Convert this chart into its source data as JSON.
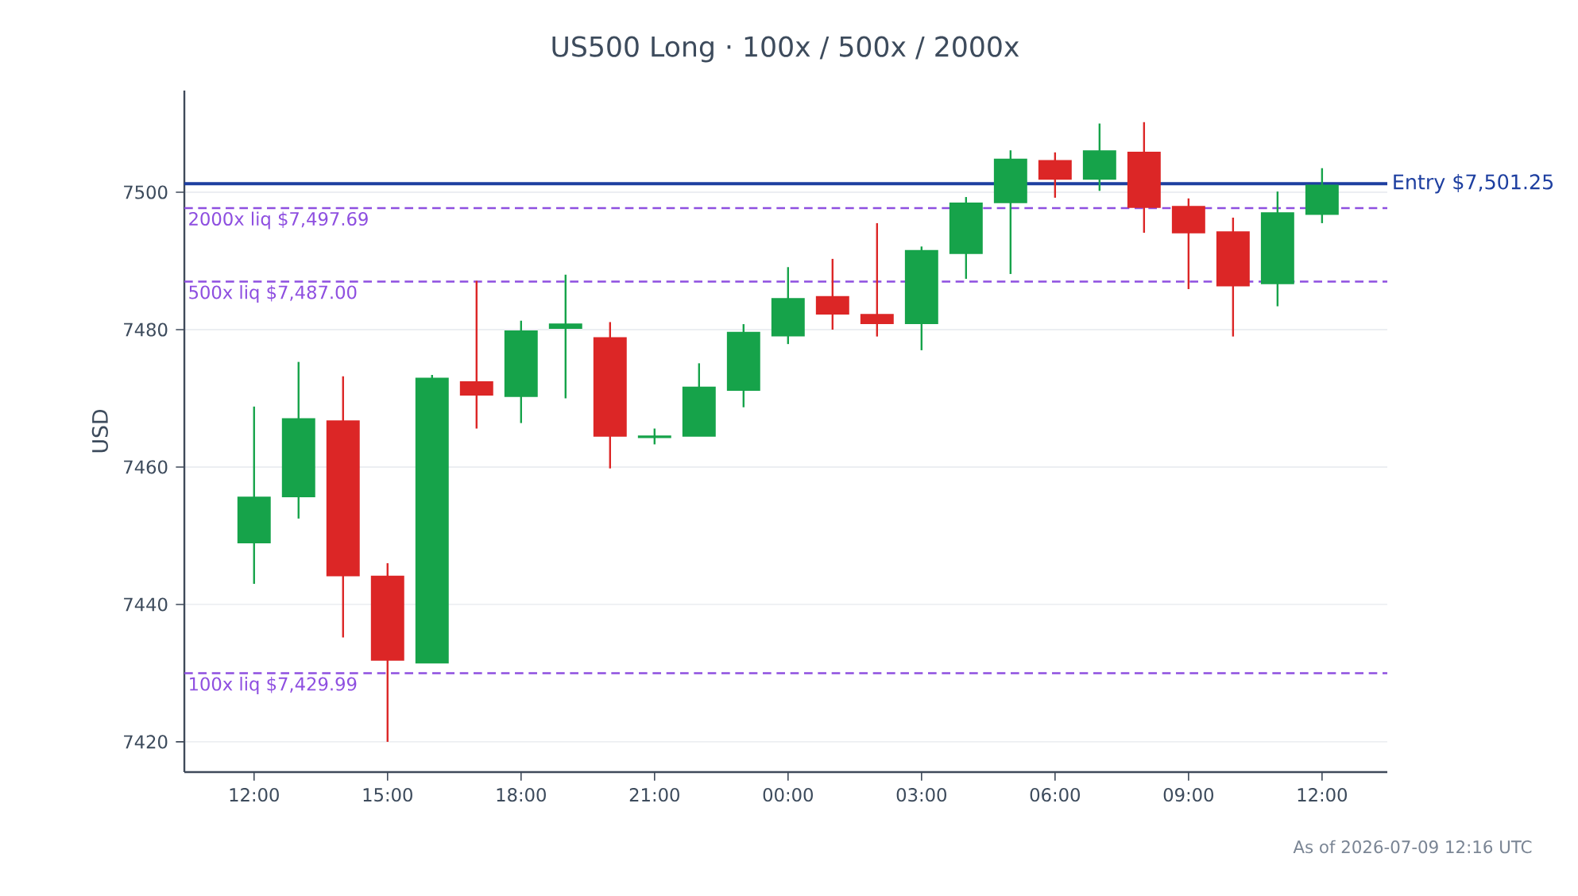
{
  "chart_data": {
    "type": "candlestick",
    "title": "US500 Long · 100x / 500x / 2000x",
    "ylabel": "USD",
    "x": [
      "2026-07-08T12:00",
      "2026-07-08T13:00",
      "2026-07-08T14:00",
      "2026-07-08T15:00",
      "2026-07-08T16:00",
      "2026-07-08T17:00",
      "2026-07-08T18:00",
      "2026-07-08T19:00",
      "2026-07-08T20:00",
      "2026-07-08T21:00",
      "2026-07-08T22:00",
      "2026-07-08T23:00",
      "2026-07-09T00:00",
      "2026-07-09T01:00",
      "2026-07-09T02:00",
      "2026-07-09T03:00",
      "2026-07-09T04:00",
      "2026-07-09T05:00",
      "2026-07-09T06:00",
      "2026-07-09T07:00",
      "2026-07-09T08:00",
      "2026-07-09T09:00",
      "2026-07-09T10:00",
      "2026-07-09T11:00",
      "2026-07-09T12:00"
    ],
    "ohlc": [
      [
        7449.0,
        7468.8,
        7443.0,
        7455.6
      ],
      [
        7455.7,
        7475.3,
        7452.5,
        7467.0
      ],
      [
        7466.7,
        7473.2,
        7435.2,
        7444.2
      ],
      [
        7444.1,
        7446.0,
        7420.0,
        7431.9
      ],
      [
        7431.5,
        7473.4,
        7431.5,
        7472.9
      ],
      [
        7472.4,
        7487.1,
        7465.6,
        7470.5
      ],
      [
        7470.3,
        7481.3,
        7466.4,
        7479.8
      ],
      [
        7480.2,
        7488.0,
        7470.0,
        7480.8
      ],
      [
        7478.8,
        7481.1,
        7459.8,
        7464.5
      ],
      [
        7464.3,
        7465.6,
        7463.3,
        7464.5
      ],
      [
        7464.5,
        7475.1,
        7464.5,
        7471.6
      ],
      [
        7471.2,
        7480.8,
        7468.7,
        7479.6
      ],
      [
        7479.1,
        7489.1,
        7477.9,
        7484.5
      ],
      [
        7484.8,
        7490.3,
        7480.0,
        7482.3
      ],
      [
        7482.2,
        7495.5,
        7479.0,
        7480.9
      ],
      [
        7480.9,
        7492.1,
        7477.0,
        7491.5
      ],
      [
        7491.1,
        7499.3,
        7487.4,
        7498.4
      ],
      [
        7498.5,
        7506.1,
        7488.1,
        7504.8
      ],
      [
        7504.6,
        7505.8,
        7499.2,
        7501.9
      ],
      [
        7501.9,
        7510.0,
        7500.2,
        7506.0
      ],
      [
        7505.8,
        7510.2,
        7494.1,
        7497.8
      ],
      [
        7497.9,
        7499.1,
        7485.9,
        7494.1
      ],
      [
        7494.2,
        7496.3,
        7479.0,
        7486.4
      ],
      [
        7486.7,
        7500.1,
        7483.4,
        7497.0
      ],
      [
        7496.8,
        7503.5,
        7495.5,
        7501.0
      ]
    ],
    "colors": [
      "#16a34a",
      "#16a34a",
      "#dc2626",
      "#dc2626",
      "#16a34a",
      "#dc2626",
      "#16a34a",
      "#16a34a",
      "#dc2626",
      "#16a34a",
      "#16a34a",
      "#16a34a",
      "#16a34a",
      "#dc2626",
      "#dc2626",
      "#16a34a",
      "#16a34a",
      "#16a34a",
      "#dc2626",
      "#16a34a",
      "#dc2626",
      "#dc2626",
      "#dc2626",
      "#16a34a",
      "#16a34a"
    ],
    "xlim": [
      "2026-07-08T10:26",
      "2026-07-09T13:28"
    ],
    "ylim": [
      7415.6,
      7514.8
    ],
    "xticks": [
      {
        "value": "2026-07-08T12:00",
        "label": "12:00"
      },
      {
        "value": "2026-07-08T15:00",
        "label": "15:00"
      },
      {
        "value": "2026-07-08T18:00",
        "label": "18:00"
      },
      {
        "value": "2026-07-08T21:00",
        "label": "21:00"
      },
      {
        "value": "2026-07-09T00:00",
        "label": "00:00"
      },
      {
        "value": "2026-07-09T03:00",
        "label": "03:00"
      },
      {
        "value": "2026-07-09T06:00",
        "label": "06:00"
      },
      {
        "value": "2026-07-09T09:00",
        "label": "09:00"
      },
      {
        "value": "2026-07-09T12:00",
        "label": "12:00"
      }
    ],
    "yticks": [
      7420,
      7440,
      7460,
      7480,
      7500
    ],
    "grid": "y",
    "ref_lines": [
      {
        "axis": "y",
        "value": 7501.25,
        "label": "Entry $7,501.25",
        "color": "#1e3fa0",
        "line_style": "solid"
      },
      {
        "axis": "y",
        "value": 7497.69,
        "label": "2000x liq $7,497.69",
        "color": "#8e4fe0",
        "line_style": "dashed"
      },
      {
        "axis": "y",
        "value": 7487.0,
        "label": "500x liq $7,487.00",
        "color": "#8e4fe0",
        "line_style": "dashed"
      },
      {
        "axis": "y",
        "value": 7429.99,
        "label": "100x liq $7,429.99",
        "color": "#8e4fe0",
        "line_style": "dashed"
      }
    ],
    "annotations": [
      "As of 2026-07-09 12:16 UTC"
    ]
  }
}
